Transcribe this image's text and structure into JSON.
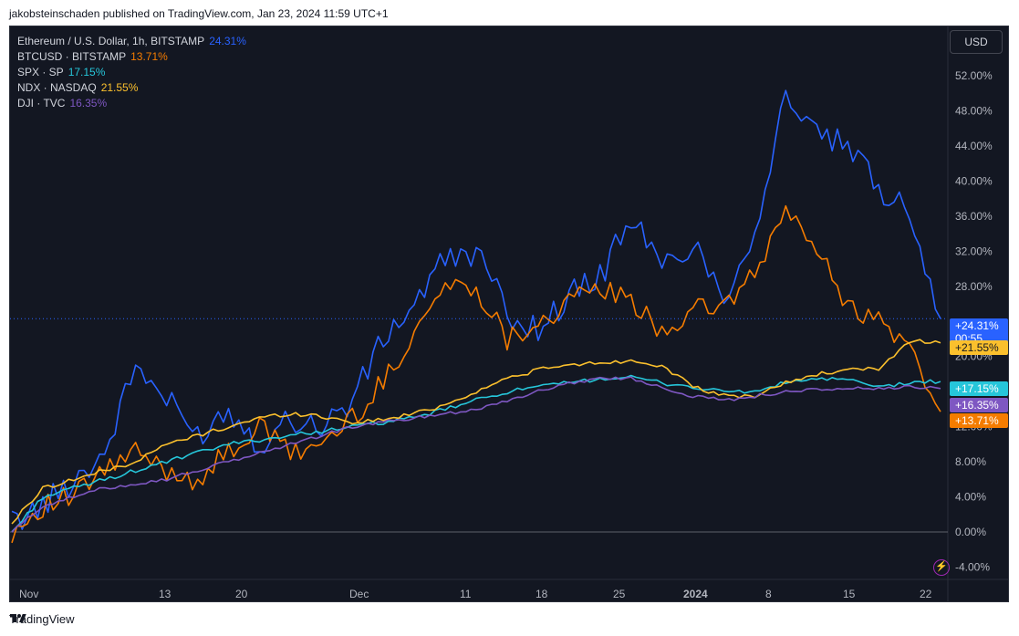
{
  "header": {
    "published_note": "jakobsteinschaden published on TradingView.com, Jan 23, 2024 11:59 UTC+1"
  },
  "footer": {
    "brand": "TradingView"
  },
  "currency_button": "USD",
  "legend": [
    {
      "name": "Ethereum / U.S. Dollar, 1h, BITSTAMP",
      "value": "24.31%",
      "color": "#2962ff"
    },
    {
      "name": "BTCUSD · BITSTAMP",
      "value": "13.71%",
      "color": "#f57c00"
    },
    {
      "name": "SPX · SP",
      "value": "17.15%",
      "color": "#26c6da"
    },
    {
      "name": "NDX · NASDAQ",
      "value": "21.55%",
      "color": "#fbc02d"
    },
    {
      "name": "DJI · TVC",
      "value": "16.35%",
      "color": "#7e57c2"
    }
  ],
  "chart_data": {
    "type": "line",
    "title": "",
    "xlabel": "",
    "ylabel": "",
    "x_ticks": [
      "Nov",
      "13",
      "20",
      "Dec",
      "11",
      "18",
      "25",
      "2024",
      "8",
      "15",
      "22"
    ],
    "y_ticks": [
      "52.00%",
      "48.00%",
      "44.00%",
      "40.00%",
      "36.00%",
      "32.00%",
      "28.00%",
      "20.00%",
      "16.00%",
      "12.00%",
      "8.00%",
      "4.00%",
      "0.00%",
      "-4.00%"
    ],
    "ylim": [
      -5,
      55
    ],
    "grid": false,
    "legend_position": "top-left",
    "x": [
      "Oct 31",
      "Nov 3",
      "Nov 6",
      "Nov 9",
      "Nov 10",
      "Nov 13",
      "Nov 16",
      "Nov 20",
      "Nov 23",
      "Nov 27",
      "Nov 30",
      "Dec 2",
      "Dec 4",
      "Dec 6",
      "Dec 8",
      "Dec 11",
      "Dec 14",
      "Dec 17",
      "Dec 20",
      "Dec 24",
      "Dec 27",
      "Dec 31",
      "Jan 3",
      "Jan 6",
      "Jan 9",
      "Jan 11",
      "Jan 13",
      "Jan 16",
      "Jan 19",
      "Jan 21",
      "Jan 23"
    ],
    "series": [
      {
        "name": "Ethereum / U.S. Dollar, 1h, BITSTAMP",
        "color": "#2962ff",
        "end_label": "+24.31%",
        "end_value": 24.31,
        "values": [
          1,
          3,
          6,
          9,
          19,
          15,
          11,
          14,
          10,
          13,
          12,
          15,
          22,
          26,
          31,
          32,
          25,
          23,
          27,
          29,
          36,
          30,
          33,
          27,
          34,
          50,
          45,
          44,
          39,
          37,
          24.31
        ]
      },
      {
        "name": "BTCUSD · BITSTAMP",
        "color": "#f57c00",
        "end_label": "+13.71%",
        "end_value": 13.71,
        "values": [
          0,
          3,
          4,
          7,
          9,
          7,
          6,
          9,
          12,
          9,
          10,
          13,
          17,
          23,
          28,
          28,
          22,
          24,
          26,
          28,
          26,
          23,
          25,
          26,
          29,
          37,
          32,
          26,
          24,
          21,
          13.71
        ]
      },
      {
        "name": "SPX · SP",
        "color": "#26c6da",
        "end_label": "+17.15%",
        "end_value": 17.15,
        "values": [
          0,
          4,
          5,
          6,
          7,
          8,
          9,
          10,
          10.5,
          11,
          11.5,
          12,
          12.5,
          13,
          14,
          15,
          16,
          16.5,
          17,
          17.5,
          17.6,
          17,
          16.5,
          16,
          16,
          17,
          17.5,
          17.3,
          16.5,
          17,
          17.15
        ]
      },
      {
        "name": "NDX · NASDAQ",
        "color": "#fbc02d",
        "end_label": "+21.55%",
        "end_value": 21.55,
        "values": [
          1,
          5,
          6,
          7,
          8,
          10,
          11,
          12,
          13,
          13.5,
          13.2,
          12.5,
          12.8,
          13.5,
          14.5,
          16,
          17.5,
          18.5,
          19,
          19.3,
          19.5,
          19,
          16.5,
          15.5,
          15.5,
          17,
          18,
          18.4,
          18.6,
          21.8,
          21.55
        ]
      },
      {
        "name": "DJI · TVC",
        "color": "#7e57c2",
        "end_label": "+16.35%",
        "end_value": 16.35,
        "values": [
          0,
          3,
          4,
          5,
          5.5,
          6,
          7,
          8,
          9,
          10,
          11,
          12,
          12.5,
          13,
          13.5,
          14,
          15,
          16,
          17,
          17.5,
          17.5,
          16.5,
          15.5,
          15,
          15.5,
          16,
          16.2,
          16.4,
          16.3,
          16.5,
          16.35
        ]
      }
    ],
    "last_value_time_label": "00:55"
  }
}
